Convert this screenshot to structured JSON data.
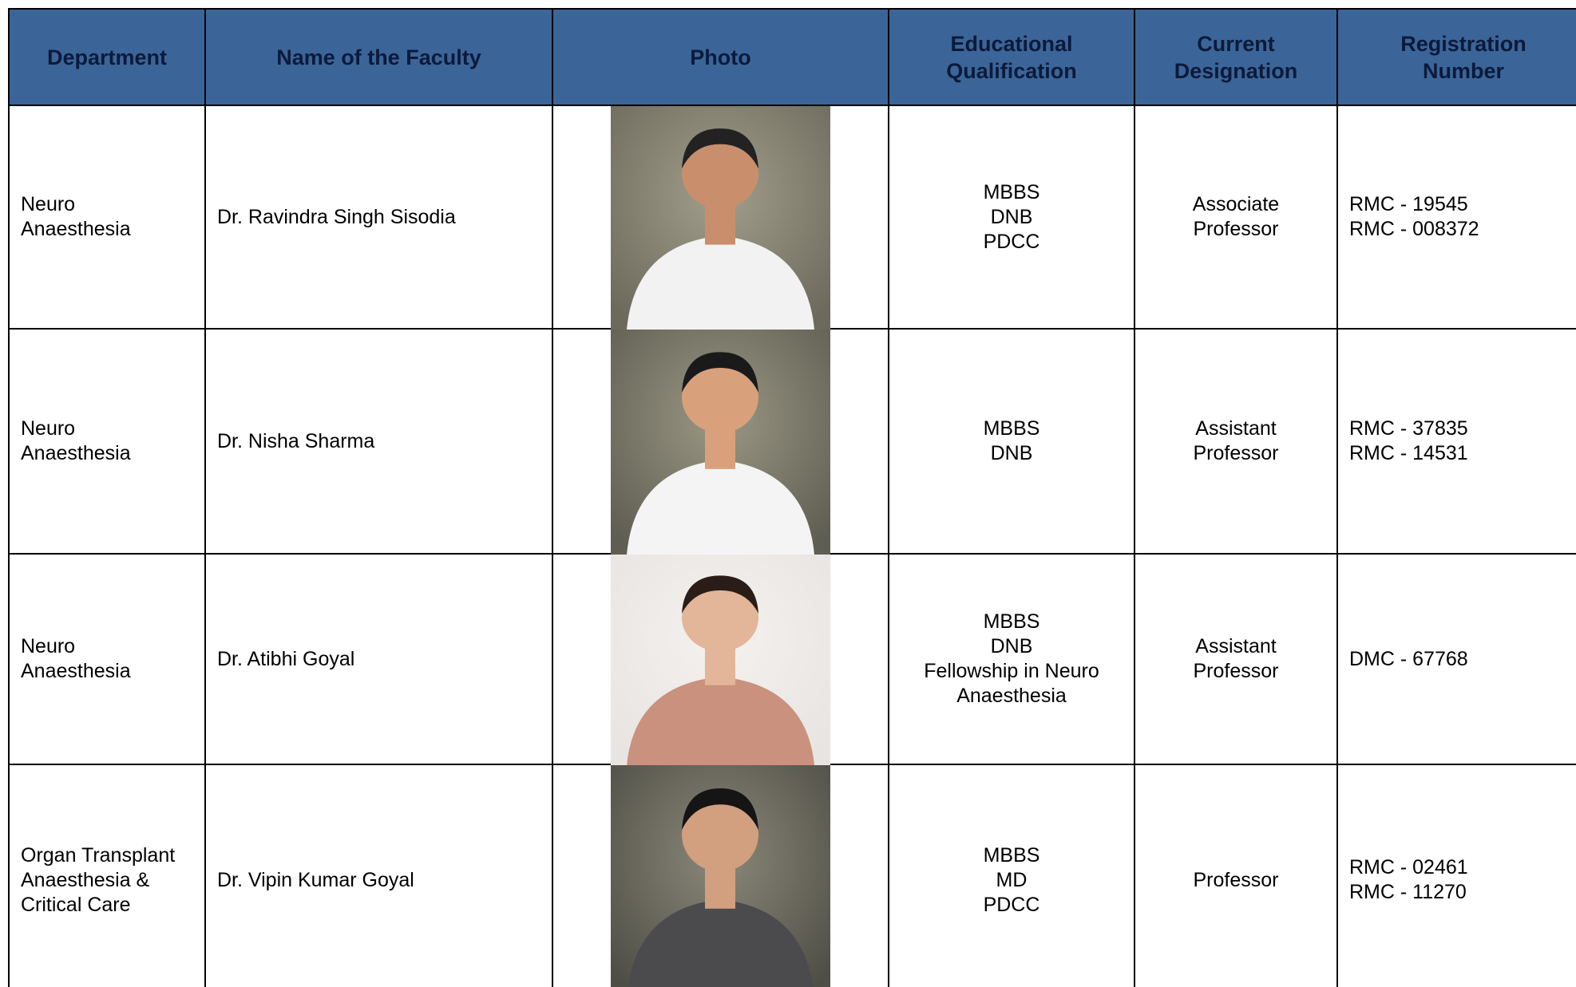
{
  "table": {
    "headers": [
      "Department",
      "Name of the Faculty",
      "Photo",
      [
        "Educational",
        "Qualification"
      ],
      [
        "Current",
        "Designation"
      ],
      [
        "Registration",
        "Number"
      ]
    ],
    "rows": [
      {
        "department": [
          "Neuro",
          "Anaesthesia"
        ],
        "name": "Dr. Ravindra Singh Sisodia",
        "qualification": [
          "MBBS",
          "DNB",
          "PDCC"
        ],
        "designation": [
          "Associate",
          "Professor"
        ],
        "registration": [
          "RMC - 19545",
          "RMC - 008372"
        ]
      },
      {
        "department": [
          "Neuro",
          "Anaesthesia"
        ],
        "name": "Dr. Nisha Sharma",
        "qualification": [
          "MBBS",
          "DNB"
        ],
        "designation": [
          "Assistant",
          "Professor"
        ],
        "registration": [
          "RMC - 37835",
          "RMC - 14531"
        ]
      },
      {
        "department": [
          "Neuro",
          "Anaesthesia"
        ],
        "name": "Dr. Atibhi Goyal",
        "qualification": [
          "MBBS",
          "DNB",
          "Fellowship in Neuro",
          "Anaesthesia"
        ],
        "designation": [
          "Assistant",
          "Professor"
        ],
        "registration": [
          "DMC - 67768"
        ]
      },
      {
        "department": [
          "Organ Transplant",
          "Anaesthesia &",
          "Critical Care"
        ],
        "name": "Dr. Vipin Kumar Goyal",
        "qualification": [
          "MBBS",
          "MD",
          "PDCC"
        ],
        "designation": [
          "Professor"
        ],
        "registration": [
          "RMC - 02461",
          "RMC - 11270"
        ]
      }
    ]
  }
}
